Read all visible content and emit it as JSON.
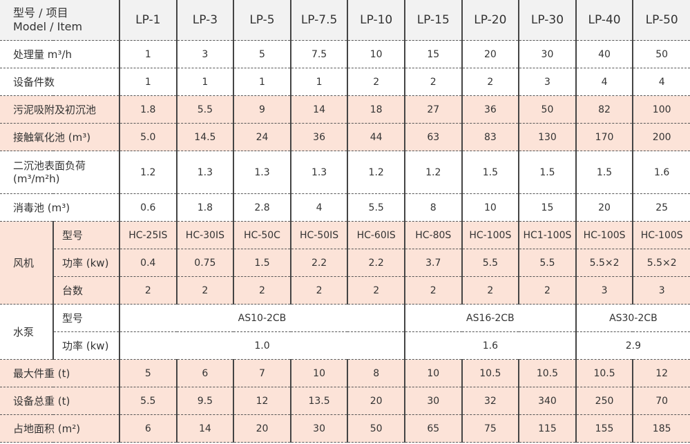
{
  "header": {
    "label_cn": "型号 / 项目",
    "label_en": "Model / Item",
    "models": [
      "LP-1",
      "LP-3",
      "LP-5",
      "LP-7.5",
      "LP-10",
      "LP-15",
      "LP-20",
      "LP-30",
      "LP-40",
      "LP-50"
    ]
  },
  "colors": {
    "highlight": "#fce3d8",
    "header_bg": "#f2f2f2"
  },
  "rows_top": [
    {
      "label": "处理量 m³/h",
      "highlight": false,
      "values": [
        "1",
        "3",
        "5",
        "7.5",
        "10",
        "15",
        "20",
        "30",
        "40",
        "50"
      ]
    },
    {
      "label": "设备件数",
      "highlight": false,
      "values": [
        "1",
        "1",
        "1",
        "1",
        "2",
        "2",
        "2",
        "3",
        "4",
        "4"
      ]
    },
    {
      "label": "污泥吸附及初沉池",
      "highlight": true,
      "values": [
        "1.8",
        "5.5",
        "9",
        "14",
        "18",
        "27",
        "36",
        "50",
        "82",
        "100"
      ]
    },
    {
      "label": "接触氧化池 (m³)",
      "highlight": true,
      "values": [
        "5.0",
        "14.5",
        "24",
        "36",
        "44",
        "63",
        "83",
        "130",
        "170",
        "200"
      ]
    },
    {
      "label": "二沉池表面负荷",
      "label2": "(m³/m²h)",
      "highlight": false,
      "values": [
        "1.2",
        "1.3",
        "1.3",
        "1.3",
        "1.2",
        "1.2",
        "1.5",
        "1.5",
        "1.5",
        "1.6"
      ]
    },
    {
      "label": "消毒池 (m³)",
      "highlight": false,
      "values": [
        "0.6",
        "1.8",
        "2.8",
        "4",
        "5.5",
        "8",
        "10",
        "15",
        "20",
        "25"
      ]
    }
  ],
  "fan": {
    "label": "风机",
    "rows": [
      {
        "label": "型号",
        "values": [
          "HC-25IS",
          "HC-30IS",
          "HC-50C",
          "HC-50IS",
          "HC-60IS",
          "HC-80S",
          "HC-100S",
          "HC1-100S",
          "HC-100S",
          "HC-100S"
        ]
      },
      {
        "label": "功率 (kw)",
        "values": [
          "0.4",
          "0.75",
          "1.5",
          "2.2",
          "2.2",
          "3.7",
          "5.5",
          "5.5",
          "5.5×2",
          "5.5×2"
        ]
      },
      {
        "label": "台数",
        "values": [
          "2",
          "2",
          "2",
          "2",
          "2",
          "2",
          "2",
          "2",
          "3",
          "3"
        ]
      }
    ]
  },
  "pump": {
    "label": "水泵",
    "rows": [
      {
        "label": "型号",
        "spans": [
          {
            "cols": 5,
            "value": "AS10-2CB"
          },
          {
            "cols": 3,
            "value": "AS16-2CB"
          },
          {
            "cols": 2,
            "value": "AS30-2CB"
          }
        ]
      },
      {
        "label": "功率 (kw)",
        "spans": [
          {
            "cols": 5,
            "value": "1.0"
          },
          {
            "cols": 3,
            "value": "1.6"
          },
          {
            "cols": 2,
            "value": "2.9"
          }
        ]
      }
    ]
  },
  "rows_bottom": [
    {
      "label": "最大件重 (t)",
      "highlight": true,
      "values": [
        "5",
        "6",
        "7",
        "10",
        "8",
        "10",
        "10.5",
        "10.5",
        "10.5",
        "12"
      ]
    },
    {
      "label": "设备总重 (t)",
      "highlight": true,
      "values": [
        "5.5",
        "9.5",
        "12",
        "13.5",
        "20",
        "30",
        "32",
        "340",
        "250",
        "70"
      ]
    },
    {
      "label": "占地面积 (m²)",
      "highlight": true,
      "values": [
        "6",
        "14",
        "20",
        "30",
        "50",
        "65",
        "75",
        "115",
        "155",
        "185"
      ]
    }
  ]
}
